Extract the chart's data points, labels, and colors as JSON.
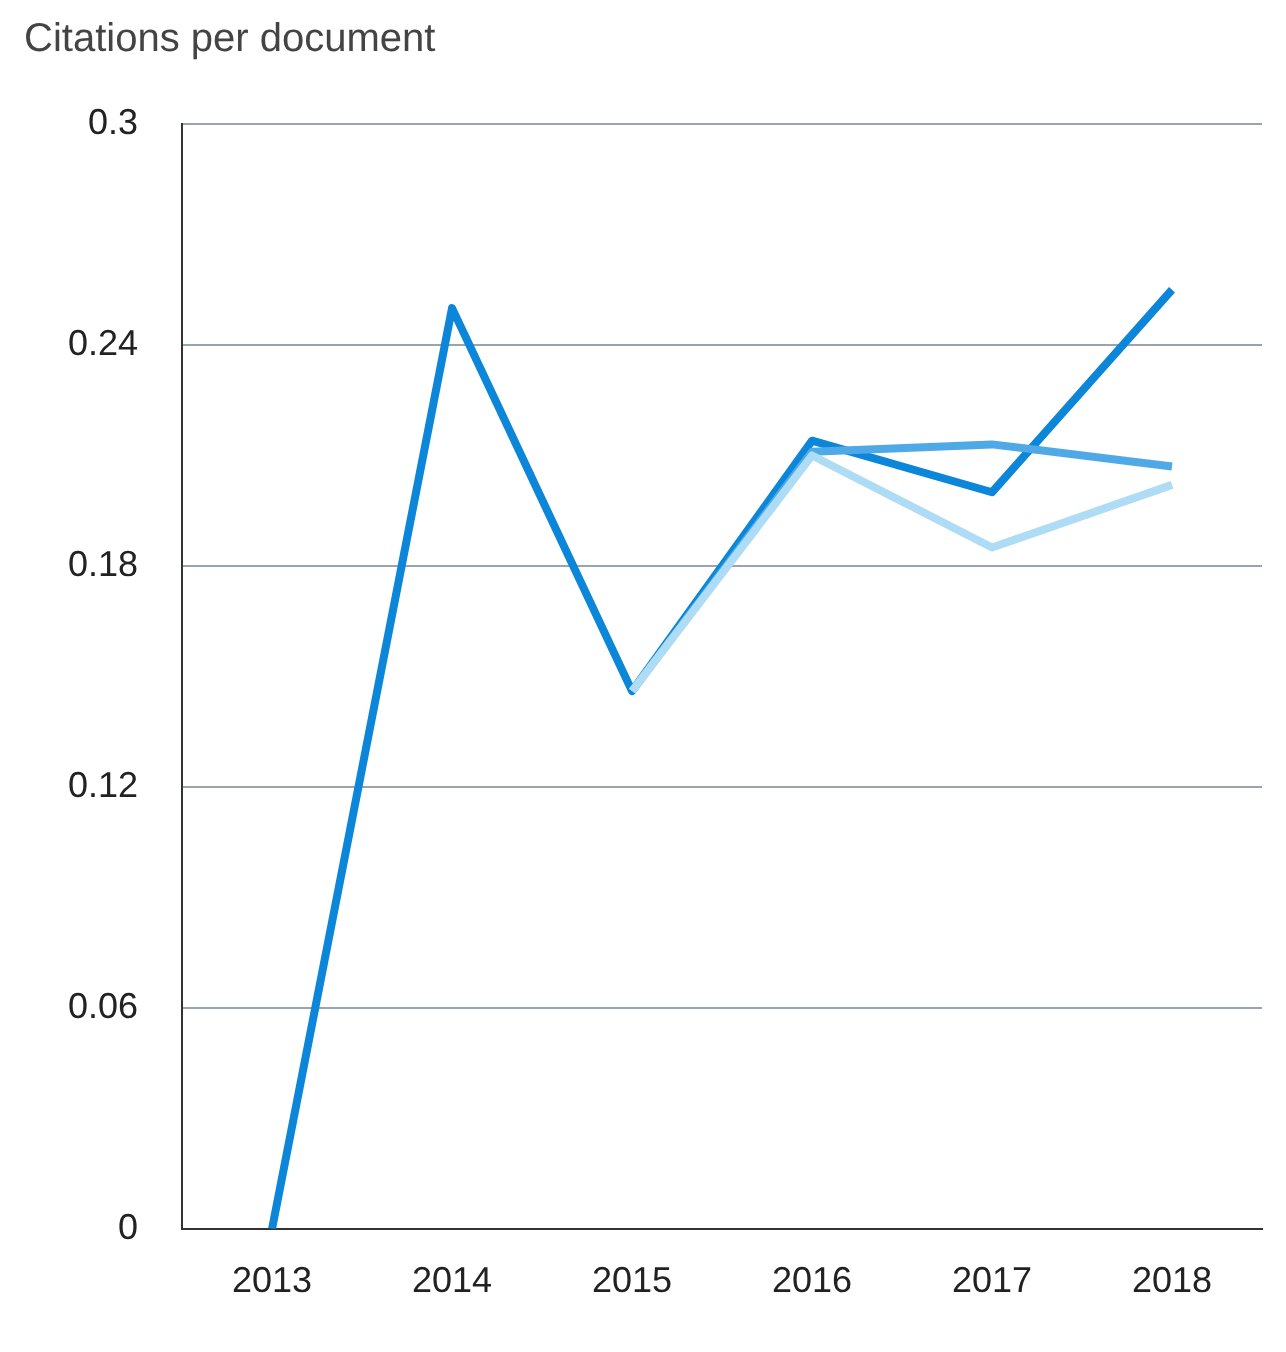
{
  "chart_data": {
    "type": "line",
    "title": "Citations per document",
    "categories": [
      "2013",
      "2014",
      "2015",
      "2016",
      "2017",
      "2018"
    ],
    "series": [
      {
        "color": "#aedcf5",
        "values": [
          null,
          null,
          0.146,
          0.21,
          0.185,
          0.202
        ]
      },
      {
        "color": "#4ea9e6",
        "values": [
          null,
          null,
          0.146,
          0.211,
          0.213,
          0.207
        ]
      },
      {
        "color": "#0b86d8",
        "values": [
          0,
          0.25,
          0.146,
          0.214,
          0.2,
          0.255
        ]
      }
    ],
    "ylim": [
      0,
      0.3
    ],
    "yticks": [
      0,
      0.06,
      0.12,
      0.18,
      0.24,
      0.3
    ],
    "grid": "y",
    "legend": false,
    "marker": "none",
    "line_style": "solid"
  }
}
